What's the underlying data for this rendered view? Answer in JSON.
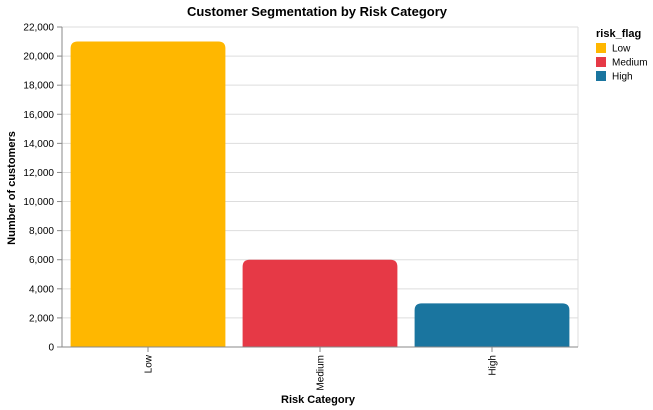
{
  "chart_data": {
    "type": "bar",
    "title": "Customer Segmentation by Risk Category",
    "xlabel": "Risk Category",
    "ylabel": "Number of customers",
    "categories": [
      "Low",
      "Medium",
      "High"
    ],
    "values": [
      21000,
      6000,
      3000
    ],
    "colors": [
      "#ffb700",
      "#e63946",
      "#1a759f"
    ],
    "ylim": [
      0,
      22000
    ],
    "yticks": [
      0,
      2000,
      4000,
      6000,
      8000,
      10000,
      12000,
      14000,
      16000,
      18000,
      20000,
      22000
    ],
    "ytick_labels": [
      "0",
      "2,000",
      "4,000",
      "6,000",
      "8,000",
      "10,000",
      "12,000",
      "14,000",
      "16,000",
      "18,000",
      "20,000",
      "22,000"
    ],
    "grid": true,
    "legend": {
      "title": "risk_flag",
      "placement": "right",
      "entries": [
        "Low",
        "Medium",
        "High"
      ]
    }
  }
}
